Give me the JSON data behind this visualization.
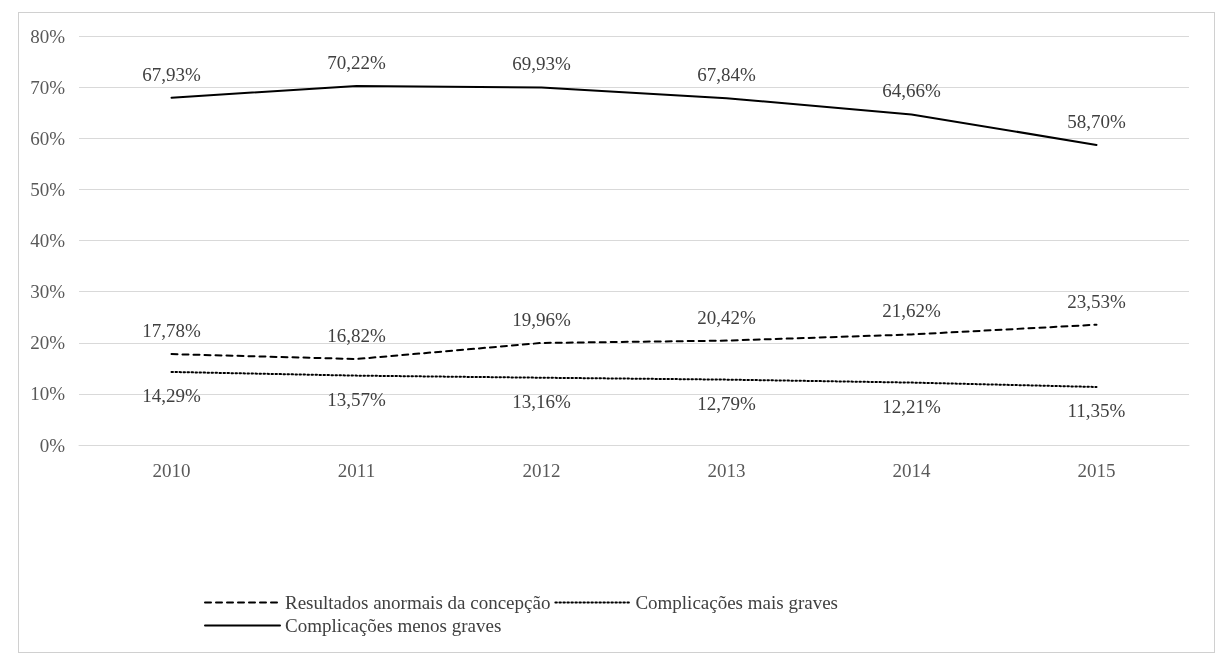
{
  "chart_data": {
    "type": "line",
    "categories": [
      "2010",
      "2011",
      "2012",
      "2013",
      "2014",
      "2015"
    ],
    "series": [
      {
        "name": "Resultados anormais da concepção",
        "color": "#000000",
        "line_style": "dashed",
        "values": [
          17.78,
          16.82,
          19.96,
          20.42,
          21.62,
          23.53
        ],
        "value_labels": [
          "17,78%",
          "16,82%",
          "19,96%",
          "20,42%",
          "21,62%",
          "23,53%"
        ]
      },
      {
        "name": "Complicações mais graves",
        "color": "#000000",
        "line_style": "dotted",
        "values": [
          14.29,
          13.57,
          13.16,
          12.79,
          12.21,
          11.35
        ],
        "value_labels": [
          "14,29%",
          "13,57%",
          "13,16%",
          "12,79%",
          "12,21%",
          "11,35%"
        ]
      },
      {
        "name": "Complicações menos graves",
        "color": "#000000",
        "line_style": "solid",
        "values": [
          67.93,
          70.22,
          69.93,
          67.84,
          64.66,
          58.7
        ],
        "value_labels": [
          "67,93%",
          "70,22%",
          "69,93%",
          "67,84%",
          "64,66%",
          "58,70%"
        ]
      }
    ],
    "ylim": [
      0,
      80
    ],
    "yticks": [
      {
        "value": 0,
        "label": "0%"
      },
      {
        "value": 10,
        "label": "10%"
      },
      {
        "value": 20,
        "label": "20%"
      },
      {
        "value": 30,
        "label": "30%"
      },
      {
        "value": 40,
        "label": "40%"
      },
      {
        "value": 50,
        "label": "50%"
      },
      {
        "value": 60,
        "label": "60%"
      },
      {
        "value": 70,
        "label": "70%"
      },
      {
        "value": 80,
        "label": "80%"
      }
    ],
    "grid": "y",
    "legend": "bottom",
    "marker": "none"
  }
}
